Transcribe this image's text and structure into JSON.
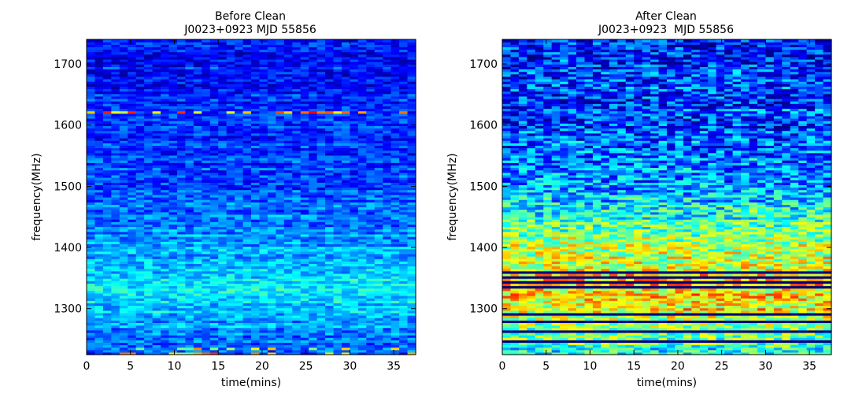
{
  "chart_data": [
    {
      "type": "heatmap",
      "title_lines": [
        "Before Clean",
        "J0023+0923 MJD 55856"
      ],
      "xlabel": "time(mins)",
      "ylabel": "frequency(MHz)",
      "xlim": [
        0,
        37.5
      ],
      "ylim": [
        1225,
        1740
      ],
      "xticks": [
        "0",
        "5",
        "10",
        "15",
        "20",
        "25",
        "30",
        "35"
      ],
      "xtick_values": [
        0,
        5,
        10,
        15,
        20,
        25,
        30,
        35
      ],
      "yticks": [
        "1300",
        "1400",
        "1500",
        "1600",
        "1700"
      ],
      "ytick_values": [
        1300,
        1400,
        1500,
        1600,
        1700
      ],
      "colormap": "jet",
      "grid": false,
      "n_time_bins": 40,
      "n_freq_channels": 128,
      "intensity_profile": [
        {
          "freq_mhz": 1230,
          "level": 0.2
        },
        {
          "freq_mhz": 1260,
          "level": 0.26
        },
        {
          "freq_mhz": 1300,
          "level": 0.32
        },
        {
          "freq_mhz": 1330,
          "level": 0.37
        },
        {
          "freq_mhz": 1370,
          "level": 0.32
        },
        {
          "freq_mhz": 1400,
          "level": 0.29
        },
        {
          "freq_mhz": 1440,
          "level": 0.25
        },
        {
          "freq_mhz": 1480,
          "level": 0.21
        },
        {
          "freq_mhz": 1520,
          "level": 0.19
        },
        {
          "freq_mhz": 1600,
          "level": 0.16
        },
        {
          "freq_mhz": 1660,
          "level": 0.14
        },
        {
          "freq_mhz": 1740,
          "level": 0.14
        }
      ],
      "rfi_channels": [
        {
          "freq_mhz": 1623,
          "level": 0.55
        },
        {
          "freq_mhz": 1235,
          "level": 0.42
        },
        {
          "freq_mhz": 1228,
          "level": 0.5
        }
      ],
      "colors": {
        "low": "#00007f",
        "high": "#7f0000",
        "axes": "#000000"
      }
    },
    {
      "type": "heatmap",
      "title_lines": [
        "After Clean",
        "J0023+0923  MJD 55856"
      ],
      "xlabel": "time(mins)",
      "ylabel": "frequency(MHz)",
      "xlim": [
        0,
        37.5
      ],
      "ylim": [
        1225,
        1740
      ],
      "xticks": [
        "0",
        "5",
        "10",
        "15",
        "20",
        "25",
        "30",
        "35"
      ],
      "xtick_values": [
        0,
        5,
        10,
        15,
        20,
        25,
        30,
        35
      ],
      "yticks": [
        "1300",
        "1400",
        "1500",
        "1600",
        "1700"
      ],
      "ytick_values": [
        1300,
        1400,
        1500,
        1600,
        1700
      ],
      "colormap": "jet",
      "grid": false,
      "n_time_bins": 40,
      "n_freq_channels": 128,
      "intensity_profile": [
        {
          "freq_mhz": 1230,
          "level": 0.4
        },
        {
          "freq_mhz": 1260,
          "level": 0.5
        },
        {
          "freq_mhz": 1300,
          "level": 0.62
        },
        {
          "freq_mhz": 1330,
          "level": 0.66
        },
        {
          "freq_mhz": 1370,
          "level": 0.6
        },
        {
          "freq_mhz": 1400,
          "level": 0.55
        },
        {
          "freq_mhz": 1440,
          "level": 0.45
        },
        {
          "freq_mhz": 1480,
          "level": 0.33
        },
        {
          "freq_mhz": 1520,
          "level": 0.27
        },
        {
          "freq_mhz": 1600,
          "level": 0.2
        },
        {
          "freq_mhz": 1660,
          "level": 0.18
        },
        {
          "freq_mhz": 1740,
          "level": 0.16
        }
      ],
      "masked_channels_mhz": [
        1248,
        1262,
        1278,
        1290,
        1335,
        1343,
        1350,
        1361
      ],
      "colors": {
        "low": "#00007f",
        "high": "#7f0000",
        "axes": "#000000"
      }
    }
  ]
}
